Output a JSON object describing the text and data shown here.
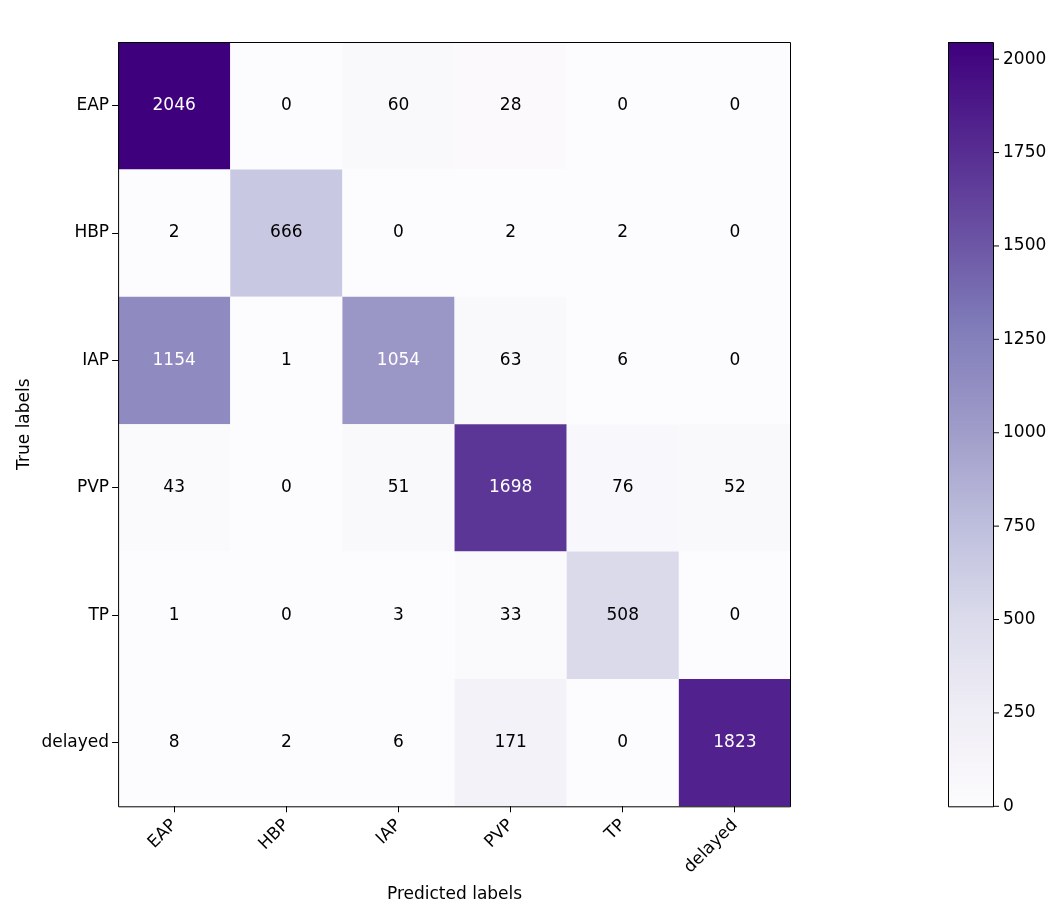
{
  "chart_data": {
    "type": "heatmap",
    "xlabel": "Predicted labels",
    "ylabel": "True labels",
    "categories": [
      "EAP",
      "HBP",
      "IAP",
      "PVP",
      "TP",
      "delayed"
    ],
    "y_categories": [
      "EAP",
      "HBP",
      "IAP",
      "PVP",
      "TP",
      "delayed"
    ],
    "cells": [
      [
        2046,
        0,
        60,
        28,
        0,
        0
      ],
      [
        2,
        666,
        0,
        2,
        2,
        0
      ],
      [
        1154,
        1,
        1054,
        63,
        6,
        0
      ],
      [
        43,
        0,
        51,
        1698,
        76,
        52
      ],
      [
        1,
        0,
        3,
        33,
        508,
        0
      ],
      [
        8,
        2,
        6,
        171,
        0,
        1823
      ]
    ],
    "clim": [
      0,
      2046
    ],
    "cticks": [
      0,
      250,
      500,
      750,
      1000,
      1250,
      1500,
      1750,
      2000
    ],
    "data_labels": true
  }
}
